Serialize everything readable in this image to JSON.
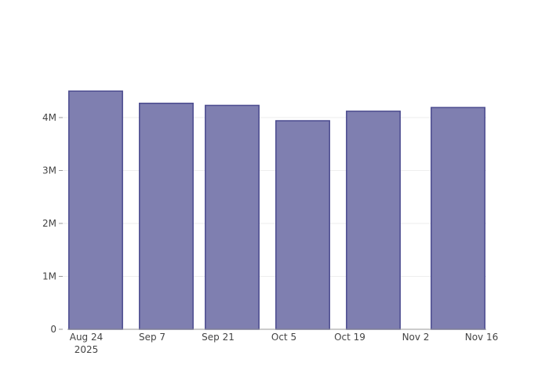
{
  "chart_data": {
    "type": "bar",
    "title": "",
    "xlabel": "",
    "ylabel": "",
    "x": [
      "2025-08-26",
      "2025-09-10",
      "2025-09-24",
      "2025-10-09",
      "2025-10-24",
      "2025-11-11"
    ],
    "values": [
      4500000,
      4270000,
      4230000,
      3940000,
      4120000,
      4190000
    ],
    "bar_width_days": 11.4,
    "xlim": [
      "2025-08-19",
      "2025-11-17"
    ],
    "ylim": [
      0,
      4740000
    ],
    "grid": true,
    "x_ticks": [
      {
        "date": "2025-08-24",
        "label": "Aug 24",
        "sublabel": "2025"
      },
      {
        "date": "2025-09-07",
        "label": "Sep 7"
      },
      {
        "date": "2025-09-21",
        "label": "Sep 21"
      },
      {
        "date": "2025-10-05",
        "label": "Oct 5"
      },
      {
        "date": "2025-10-19",
        "label": "Oct 19"
      },
      {
        "date": "2025-11-02",
        "label": "Nov 2"
      },
      {
        "date": "2025-11-16",
        "label": "Nov 16"
      }
    ],
    "y_ticks": [
      {
        "value": 0,
        "label": "0"
      },
      {
        "value": 1000000,
        "label": "1M"
      },
      {
        "value": 2000000,
        "label": "2M"
      },
      {
        "value": 3000000,
        "label": "3M"
      },
      {
        "value": 4000000,
        "label": "4M"
      }
    ],
    "colors": {
      "fill": "#7f7fb0",
      "stroke": "#4b4b8f",
      "grid": "#eeeeee",
      "axis": "#999999"
    }
  }
}
